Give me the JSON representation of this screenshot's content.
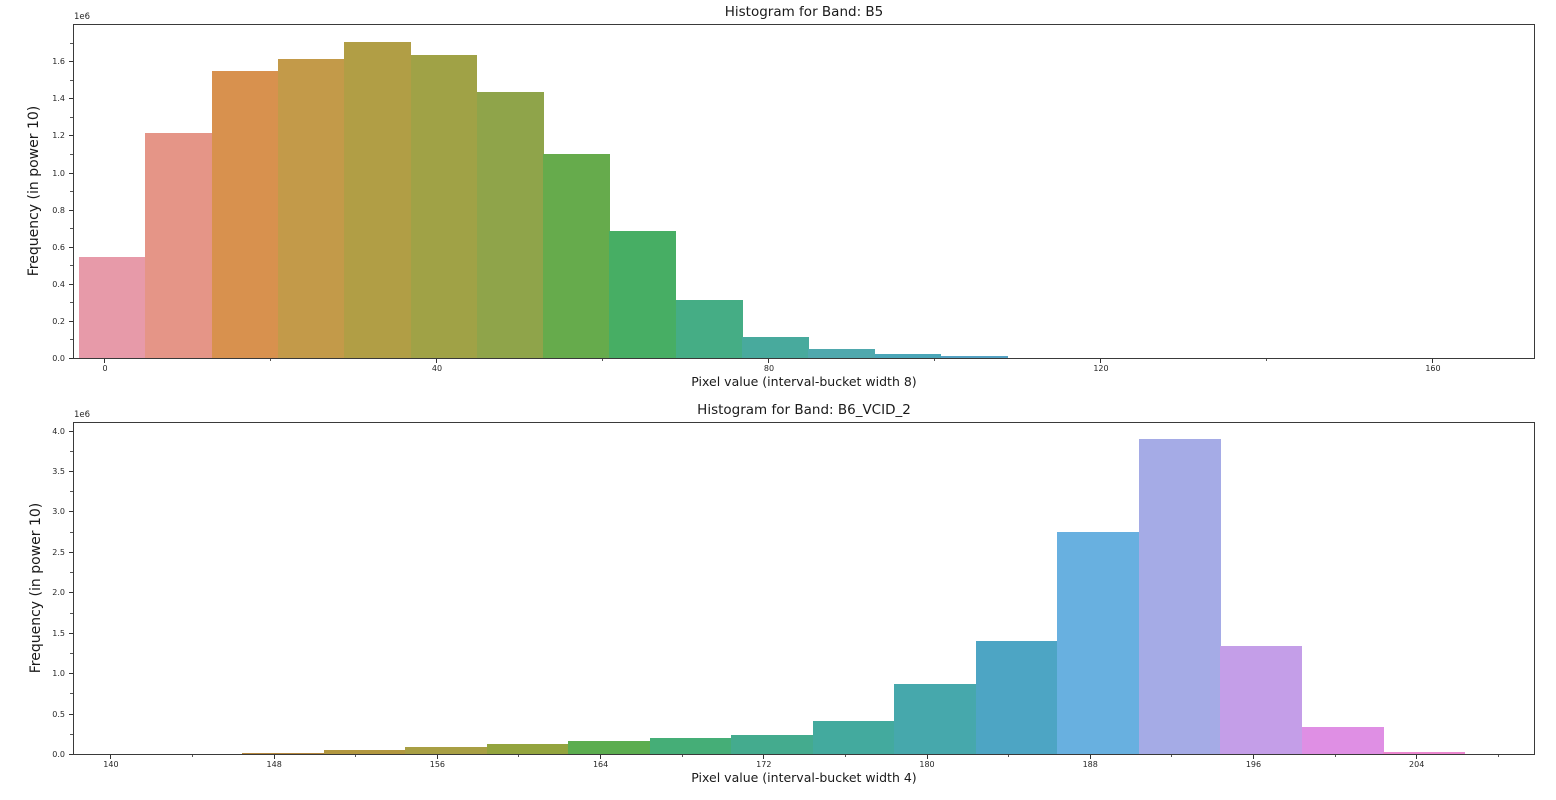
{
  "figure": {
    "background": "#ffffff"
  },
  "chart_data": [
    {
      "type": "bar",
      "title": "Histogram for Band: B5",
      "xlabel": "Pixel value (interval-bucket width 8)",
      "ylabel": "Frequency (in power 10)",
      "y_offset_text": "1e6",
      "y_unit": 1000000,
      "bin_width": 8,
      "xlim": [
        -3.855,
        172.29
      ],
      "ylim_e6": [
        0,
        1.804
      ],
      "xticks": [
        0,
        40,
        80,
        120,
        160
      ],
      "xtick_labels": [
        "0",
        "40",
        "80",
        "120",
        "160"
      ],
      "xminorticks": [
        20,
        60,
        100,
        140
      ],
      "yticks_e6": [
        0.0,
        0.2,
        0.4,
        0.6,
        0.8,
        1.0,
        1.2,
        1.4,
        1.6
      ],
      "ytick_labels": [
        "0.0",
        "0.2",
        "0.4",
        "0.6",
        "0.8",
        "1.0",
        "1.2",
        "1.4",
        "1.6"
      ],
      "yminorticks_e6": [
        0.1,
        0.3,
        0.5,
        0.7,
        0.9,
        1.1,
        1.3,
        1.5,
        1.7
      ],
      "grid": false,
      "legend": null,
      "bars": [
        {
          "x0": -3.25,
          "x1": 4.75,
          "freq_e6": 0.545,
          "color": "#e79aa9"
        },
        {
          "x0": 4.75,
          "x1": 12.75,
          "freq_e6": 1.22,
          "color": "#e59587"
        },
        {
          "x0": 12.75,
          "x1": 20.75,
          "freq_e6": 1.555,
          "color": "#d8914e"
        },
        {
          "x0": 20.75,
          "x1": 28.75,
          "freq_e6": 1.62,
          "color": "#c39a49"
        },
        {
          "x0": 28.75,
          "x1": 36.75,
          "freq_e6": 1.71,
          "color": "#b19e45"
        },
        {
          "x0": 36.75,
          "x1": 44.75,
          "freq_e6": 1.64,
          "color": "#a0a246"
        },
        {
          "x0": 44.75,
          "x1": 52.75,
          "freq_e6": 1.44,
          "color": "#8fa44a"
        },
        {
          "x0": 52.75,
          "x1": 60.75,
          "freq_e6": 1.105,
          "color": "#66ab4c"
        },
        {
          "x0": 60.75,
          "x1": 68.75,
          "freq_e6": 0.685,
          "color": "#47ae64"
        },
        {
          "x0": 68.75,
          "x1": 76.75,
          "freq_e6": 0.31,
          "color": "#45ad85"
        },
        {
          "x0": 76.75,
          "x1": 84.75,
          "freq_e6": 0.11,
          "color": "#48aa9d"
        },
        {
          "x0": 84.75,
          "x1": 92.75,
          "freq_e6": 0.045,
          "color": "#4fa8ad"
        },
        {
          "x0": 92.75,
          "x1": 100.75,
          "freq_e6": 0.018,
          "color": "#4aa6b8"
        },
        {
          "x0": 100.75,
          "x1": 108.75,
          "freq_e6": 0.006,
          "color": "#55a3c4"
        }
      ]
    },
    {
      "type": "bar",
      "title": "Histogram for Band: B6_VCID_2",
      "xlabel": "Pixel value (interval-bucket width 4)",
      "ylabel": "Frequency (in power 10)",
      "y_offset_text": "1e6",
      "y_unit": 1000000,
      "bin_width": 4,
      "xlim": [
        138.14,
        209.8
      ],
      "ylim_e6": [
        0,
        4.113
      ],
      "xticks": [
        140,
        148,
        156,
        164,
        172,
        180,
        188,
        196,
        204
      ],
      "xtick_labels": [
        "140",
        "148",
        "156",
        "164",
        "172",
        "180",
        "188",
        "196",
        "204"
      ],
      "xminorticks": [
        144,
        152,
        160,
        168,
        176,
        184,
        192,
        200,
        208
      ],
      "yticks_e6": [
        0.0,
        0.5,
        1.0,
        1.5,
        2.0,
        2.5,
        3.0,
        3.5,
        4.0
      ],
      "ytick_labels": [
        "0.0",
        "0.5",
        "1.0",
        "1.5",
        "2.0",
        "2.5",
        "3.0",
        "3.5",
        "4.0"
      ],
      "yminorticks_e6": [
        0.25,
        0.75,
        1.25,
        1.75,
        2.25,
        2.75,
        3.25,
        3.75
      ],
      "grid": false,
      "legend": null,
      "bars": [
        {
          "x0": 146.4,
          "x1": 150.4,
          "freq_e6": 0.012,
          "color": "#b5873d"
        },
        {
          "x0": 150.4,
          "x1": 154.4,
          "freq_e6": 0.045,
          "color": "#b2973f"
        },
        {
          "x0": 154.4,
          "x1": 158.4,
          "freq_e6": 0.085,
          "color": "#a89f44"
        },
        {
          "x0": 158.4,
          "x1": 162.4,
          "freq_e6": 0.12,
          "color": "#93a43e"
        },
        {
          "x0": 162.4,
          "x1": 166.4,
          "freq_e6": 0.155,
          "color": "#5bad4f"
        },
        {
          "x0": 166.4,
          "x1": 170.4,
          "freq_e6": 0.19,
          "color": "#45ae77"
        },
        {
          "x0": 170.4,
          "x1": 174.4,
          "freq_e6": 0.225,
          "color": "#44ab8e"
        },
        {
          "x0": 174.4,
          "x1": 178.4,
          "freq_e6": 0.41,
          "color": "#43aa9e"
        },
        {
          "x0": 178.4,
          "x1": 182.4,
          "freq_e6": 0.87,
          "color": "#46a8ac"
        },
        {
          "x0": 182.4,
          "x1": 186.4,
          "freq_e6": 1.4,
          "color": "#4da5c4"
        },
        {
          "x0": 186.4,
          "x1": 190.4,
          "freq_e6": 2.76,
          "color": "#68b0e0"
        },
        {
          "x0": 190.4,
          "x1": 194.4,
          "freq_e6": 3.91,
          "color": "#a5abe6"
        },
        {
          "x0": 194.4,
          "x1": 198.4,
          "freq_e6": 1.34,
          "color": "#c49ee8"
        },
        {
          "x0": 198.4,
          "x1": 202.4,
          "freq_e6": 0.33,
          "color": "#df8fe4"
        },
        {
          "x0": 202.4,
          "x1": 206.4,
          "freq_e6": 0.02,
          "color": "#ec87d0"
        }
      ]
    }
  ]
}
